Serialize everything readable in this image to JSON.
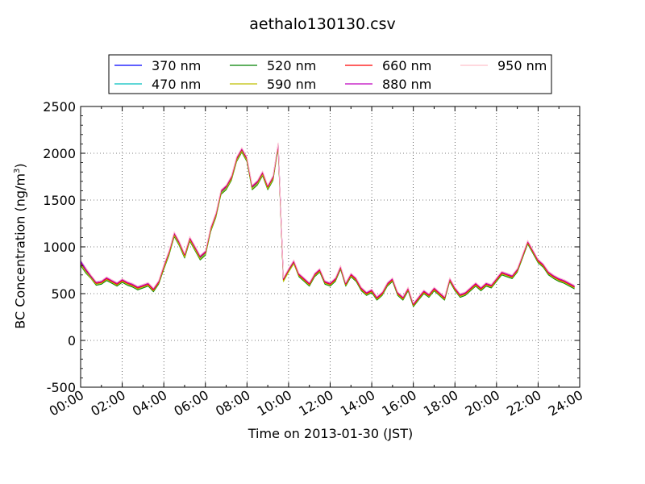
{
  "chart_data": {
    "type": "line",
    "title": "aethalo130130.csv",
    "xlabel": "Time on 2013-01-30 (JST)",
    "ylabel": "BC Concentration (ng/m",
    "ylabel_sup": "3",
    "ylabel_close": ")",
    "x_ticks": [
      "00:00",
      "02:00",
      "04:00",
      "06:00",
      "08:00",
      "10:00",
      "12:00",
      "14:00",
      "16:00",
      "18:00",
      "20:00",
      "22:00",
      "24:00"
    ],
    "y_ticks": [
      "2500",
      "2000",
      "1500",
      "1000",
      "500",
      "0",
      "-500"
    ],
    "xlim_hours": [
      0,
      24
    ],
    "ylim": [
      -500,
      2500
    ],
    "grid": true,
    "legend_position": "top",
    "x_hours": [
      0,
      0.25,
      0.5,
      0.75,
      1,
      1.25,
      1.5,
      1.75,
      2,
      2.25,
      2.5,
      2.75,
      3,
      3.25,
      3.5,
      3.75,
      4,
      4.25,
      4.5,
      4.75,
      5,
      5.25,
      5.5,
      5.75,
      6,
      6.25,
      6.5,
      6.75,
      7,
      7.25,
      7.5,
      7.75,
      8,
      8.25,
      8.5,
      8.75,
      9,
      9.25,
      9.5,
      9.75,
      10,
      10.25,
      10.5,
      10.75,
      11,
      11.25,
      11.5,
      11.75,
      12,
      12.25,
      12.5,
      12.75,
      13,
      13.25,
      13.5,
      13.75,
      14,
      14.25,
      14.5,
      14.75,
      15,
      15.25,
      15.5,
      15.75,
      16,
      16.25,
      16.5,
      16.75,
      17,
      17.25,
      17.5,
      17.75,
      18,
      18.25,
      18.5,
      18.75,
      19,
      19.25,
      19.5,
      19.75,
      20,
      20.25,
      20.5,
      20.75,
      21,
      21.25,
      21.5,
      21.75,
      22,
      22.25,
      22.5,
      22.75,
      23,
      23.25,
      23.5,
      23.75
    ],
    "series": [
      {
        "name": "370 nm",
        "color": "#0000ff",
        "values": [
          850,
          760,
          680,
          610,
          620,
          660,
          630,
          600,
          640,
          610,
          590,
          560,
          580,
          600,
          540,
          620,
          800,
          950,
          1150,
          1050,
          920,
          1100,
          1000,
          900,
          950,
          1200,
          1350,
          1600,
          1650,
          1750,
          1950,
          2050,
          1950,
          1650,
          1700,
          1800,
          1650,
          1750,
          2100,
          650,
          750,
          850,
          700,
          650,
          600,
          700,
          750,
          620,
          600,
          650,
          780,
          600,
          700,
          650,
          550,
          500,
          530,
          450,
          500,
          600,
          650,
          500,
          450,
          550,
          380,
          450,
          520,
          480,
          550,
          500,
          450,
          650,
          550,
          480,
          500,
          550,
          600,
          550,
          600,
          580,
          650,
          720,
          700,
          680,
          750,
          900,
          1050,
          950,
          850,
          800,
          720,
          680,
          650,
          630,
          600,
          570
        ]
      },
      {
        "name": "470 nm",
        "color": "#00bfbf",
        "values": [
          820,
          740,
          670,
          600,
          610,
          650,
          620,
          590,
          630,
          600,
          580,
          550,
          570,
          590,
          530,
          610,
          780,
          930,
          1130,
          1030,
          900,
          1080,
          980,
          880,
          930,
          1180,
          1330,
          1580,
          1630,
          1730,
          1930,
          2030,
          1930,
          1630,
          1680,
          1780,
          1630,
          1730,
          2080,
          640,
          740,
          830,
          690,
          640,
          590,
          690,
          740,
          610,
          590,
          640,
          770,
          590,
          690,
          640,
          540,
          490,
          520,
          440,
          490,
          590,
          640,
          490,
          440,
          540,
          370,
          440,
          510,
          470,
          540,
          490,
          440,
          640,
          540,
          470,
          490,
          540,
          590,
          540,
          590,
          570,
          640,
          710,
          690,
          670,
          740,
          890,
          1040,
          940,
          840,
          790,
          710,
          670,
          640,
          620,
          590,
          560
        ]
      },
      {
        "name": "520 nm",
        "color": "#008000",
        "values": [
          800,
          720,
          660,
          590,
          600,
          640,
          610,
          580,
          620,
          590,
          570,
          540,
          560,
          580,
          520,
          600,
          760,
          910,
          1110,
          1010,
          880,
          1060,
          960,
          860,
          910,
          1160,
          1310,
          1560,
          1610,
          1710,
          1910,
          2010,
          1910,
          1610,
          1660,
          1760,
          1610,
          1710,
          2060,
          630,
          730,
          820,
          680,
          630,
          580,
          680,
          730,
          600,
          580,
          630,
          760,
          580,
          680,
          630,
          530,
          480,
          510,
          430,
          480,
          580,
          630,
          480,
          430,
          530,
          360,
          430,
          500,
          460,
          530,
          480,
          430,
          630,
          530,
          460,
          480,
          530,
          580,
          530,
          580,
          560,
          630,
          700,
          680,
          660,
          730,
          880,
          1030,
          930,
          830,
          780,
          700,
          660,
          630,
          610,
          580,
          550
        ]
      },
      {
        "name": "590 nm",
        "color": "#bfbf00",
        "values": [
          810,
          730,
          660,
          600,
          610,
          650,
          620,
          590,
          630,
          600,
          580,
          550,
          570,
          590,
          530,
          610,
          770,
          920,
          1120,
          1020,
          890,
          1070,
          970,
          870,
          920,
          1170,
          1320,
          1570,
          1620,
          1720,
          1920,
          2020,
          1920,
          1620,
          1670,
          1770,
          1620,
          1720,
          2070,
          630,
          730,
          820,
          690,
          640,
          590,
          690,
          740,
          610,
          590,
          640,
          770,
          590,
          690,
          640,
          540,
          490,
          520,
          440,
          490,
          590,
          640,
          490,
          440,
          540,
          370,
          440,
          510,
          470,
          540,
          490,
          440,
          640,
          540,
          470,
          490,
          540,
          590,
          540,
          590,
          570,
          640,
          710,
          690,
          670,
          740,
          890,
          1040,
          940,
          840,
          790,
          710,
          670,
          640,
          620,
          590,
          560
        ]
      },
      {
        "name": "660 nm",
        "color": "#ff0000",
        "values": [
          830,
          750,
          680,
          610,
          620,
          660,
          630,
          600,
          640,
          610,
          590,
          560,
          580,
          600,
          540,
          620,
          790,
          940,
          1140,
          1040,
          910,
          1090,
          990,
          890,
          940,
          1190,
          1340,
          1590,
          1640,
          1740,
          1940,
          2040,
          1940,
          1640,
          1690,
          1790,
          1640,
          1740,
          2090,
          650,
          750,
          840,
          700,
          650,
          600,
          700,
          750,
          620,
          600,
          650,
          780,
          600,
          700,
          650,
          550,
          500,
          530,
          450,
          500,
          600,
          650,
          500,
          450,
          550,
          380,
          450,
          520,
          480,
          550,
          500,
          450,
          650,
          550,
          480,
          500,
          550,
          600,
          550,
          600,
          580,
          650,
          720,
          700,
          680,
          750,
          900,
          1050,
          950,
          850,
          800,
          720,
          680,
          650,
          630,
          600,
          570
        ]
      },
      {
        "name": "880 nm",
        "color": "#bf00bf",
        "values": [
          840,
          760,
          690,
          620,
          630,
          670,
          640,
          610,
          650,
          620,
          600,
          570,
          590,
          610,
          550,
          630,
          800,
          950,
          1150,
          1050,
          920,
          1100,
          1000,
          900,
          950,
          1200,
          1350,
          1600,
          1650,
          1750,
          1950,
          2050,
          1950,
          1650,
          1700,
          1800,
          1650,
          1750,
          2100,
          660,
          760,
          850,
          710,
          660,
          610,
          710,
          760,
          630,
          610,
          660,
          790,
          610,
          710,
          660,
          560,
          510,
          540,
          460,
          510,
          610,
          660,
          510,
          460,
          560,
          390,
          460,
          530,
          490,
          560,
          510,
          460,
          660,
          560,
          490,
          510,
          560,
          610,
          560,
          610,
          590,
          660,
          730,
          710,
          690,
          760,
          910,
          1060,
          960,
          860,
          810,
          730,
          690,
          660,
          640,
          610,
          580
        ]
      },
      {
        "name": "950 nm",
        "color": "#ffc0cb",
        "values": [
          860,
          780,
          700,
          630,
          640,
          680,
          650,
          620,
          660,
          630,
          610,
          580,
          600,
          620,
          560,
          640,
          810,
          960,
          1160,
          1060,
          930,
          1110,
          1010,
          910,
          960,
          1210,
          1360,
          1610,
          1660,
          1760,
          1960,
          2060,
          1960,
          1660,
          1710,
          1810,
          1660,
          1760,
          2110,
          670,
          770,
          860,
          720,
          670,
          620,
          720,
          770,
          640,
          620,
          670,
          800,
          620,
          720,
          670,
          570,
          520,
          550,
          470,
          520,
          620,
          670,
          520,
          470,
          570,
          400,
          470,
          540,
          500,
          570,
          520,
          470,
          670,
          570,
          500,
          520,
          570,
          620,
          570,
          620,
          600,
          670,
          740,
          720,
          700,
          770,
          920,
          1070,
          970,
          870,
          820,
          740,
          700,
          670,
          650,
          620,
          590
        ]
      }
    ]
  }
}
